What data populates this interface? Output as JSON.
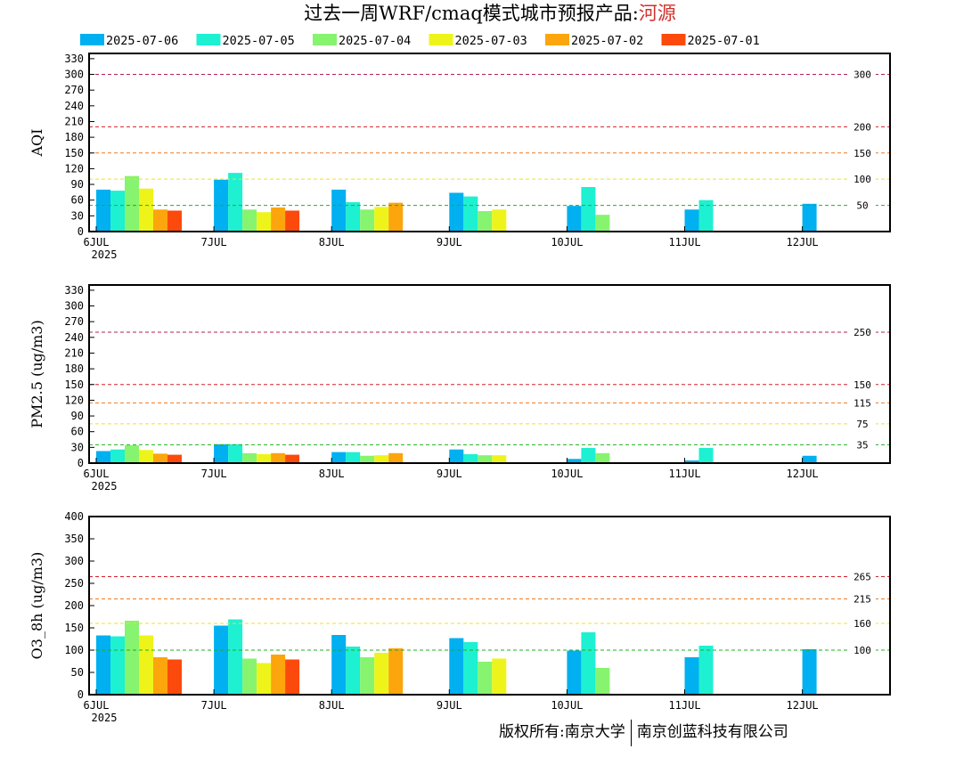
{
  "title": {
    "prefix": "过去一周WRF/cmaq模式城市预报产品:",
    "city": "河源"
  },
  "footer": {
    "left": "版权所有:南京大学",
    "right": "南京创蓝科技有限公司"
  },
  "legend": [
    {
      "name": "2025-07-06",
      "color": "#00b0f0"
    },
    {
      "name": "2025-07-05",
      "color": "#1ef0d2"
    },
    {
      "name": "2025-07-04",
      "color": "#86f46e"
    },
    {
      "name": "2025-07-03",
      "color": "#eef41a"
    },
    {
      "name": "2025-07-02",
      "color": "#fca50c"
    },
    {
      "name": "2025-07-01",
      "color": "#fc4a0c"
    }
  ],
  "x_ticks": [
    "6JUL",
    "7JUL",
    "8JUL",
    "9JUL",
    "10JUL",
    "11JUL",
    "12JUL"
  ],
  "x_year": "2025",
  "chart_data": [
    {
      "type": "bar",
      "ylabel": "AQI",
      "ylim": [
        0,
        340
      ],
      "yticks": [
        0,
        30,
        60,
        90,
        120,
        150,
        180,
        210,
        240,
        270,
        300,
        330
      ],
      "thresholds": [
        {
          "value": 300,
          "label": "300",
          "color": "#b0205a"
        },
        {
          "value": 200,
          "label": "200",
          "color": "#d0202a"
        },
        {
          "value": 150,
          "label": "150",
          "color": "#f07820"
        },
        {
          "value": 100,
          "label": "100",
          "color": "#f0e020"
        },
        {
          "value": 50,
          "label": "50",
          "color": "#20b020"
        }
      ],
      "categories": [
        "6JUL",
        "7JUL",
        "8JUL",
        "9JUL",
        "10JUL",
        "11JUL",
        "12JUL"
      ],
      "series": [
        {
          "name": "2025-07-06",
          "values": [
            80,
            99,
            80,
            74,
            49,
            42,
            53
          ]
        },
        {
          "name": "2025-07-05",
          "values": [
            78,
            112,
            56,
            67,
            85,
            60,
            null
          ]
        },
        {
          "name": "2025-07-04",
          "values": [
            106,
            42,
            42,
            39,
            32,
            null,
            null
          ]
        },
        {
          "name": "2025-07-03",
          "values": [
            82,
            37,
            47,
            42,
            null,
            null,
            null
          ]
        },
        {
          "name": "2025-07-02",
          "values": [
            42,
            46,
            55,
            null,
            null,
            null,
            null
          ]
        },
        {
          "name": "2025-07-01",
          "values": [
            40,
            40,
            null,
            null,
            null,
            null,
            null
          ]
        }
      ]
    },
    {
      "type": "bar",
      "ylabel": "PM2.5 (ug/m3)",
      "ylim": [
        0,
        340
      ],
      "yticks": [
        0,
        30,
        60,
        90,
        120,
        150,
        180,
        210,
        240,
        270,
        300,
        330
      ],
      "thresholds": [
        {
          "value": 250,
          "label": "250",
          "color": "#b0205a"
        },
        {
          "value": 150,
          "label": "150",
          "color": "#d0202a"
        },
        {
          "value": 115,
          "label": "115",
          "color": "#f07820"
        },
        {
          "value": 75,
          "label": "75",
          "color": "#f0e020"
        },
        {
          "value": 35,
          "label": "35",
          "color": "#20b020"
        }
      ],
      "categories": [
        "6JUL",
        "7JUL",
        "8JUL",
        "9JUL",
        "10JUL",
        "11JUL",
        "12JUL"
      ],
      "series": [
        {
          "name": "2025-07-06",
          "values": [
            23,
            36,
            21,
            26,
            8,
            5,
            14
          ]
        },
        {
          "name": "2025-07-05",
          "values": [
            26,
            36,
            21,
            17,
            29,
            29,
            null
          ]
        },
        {
          "name": "2025-07-04",
          "values": [
            34,
            19,
            14,
            15,
            19,
            null,
            null
          ]
        },
        {
          "name": "2025-07-03",
          "values": [
            25,
            17,
            15,
            15,
            null,
            null,
            null
          ]
        },
        {
          "name": "2025-07-02",
          "values": [
            18,
            19,
            19,
            null,
            null,
            null,
            null
          ]
        },
        {
          "name": "2025-07-01",
          "values": [
            16,
            16,
            null,
            null,
            null,
            null,
            null
          ]
        }
      ]
    },
    {
      "type": "bar",
      "ylabel": "O3_8h (ug/m3)",
      "ylim": [
        0,
        400
      ],
      "yticks": [
        0,
        50,
        100,
        150,
        200,
        250,
        300,
        350,
        400
      ],
      "thresholds": [
        {
          "value": 265,
          "label": "265",
          "color": "#d0202a"
        },
        {
          "value": 215,
          "label": "215",
          "color": "#f07820"
        },
        {
          "value": 160,
          "label": "160",
          "color": "#f0e020"
        },
        {
          "value": 100,
          "label": "100",
          "color": "#20b020"
        }
      ],
      "categories": [
        "6JUL",
        "7JUL",
        "8JUL",
        "9JUL",
        "10JUL",
        "11JUL",
        "12JUL"
      ],
      "series": [
        {
          "name": "2025-07-06",
          "values": [
            133,
            155,
            134,
            127,
            99,
            84,
            102
          ]
        },
        {
          "name": "2025-07-05",
          "values": [
            131,
            169,
            108,
            118,
            140,
            110,
            null
          ]
        },
        {
          "name": "2025-07-04",
          "values": [
            166,
            81,
            84,
            74,
            60,
            null,
            null
          ]
        },
        {
          "name": "2025-07-03",
          "values": [
            133,
            71,
            94,
            81,
            null,
            null,
            null
          ]
        },
        {
          "name": "2025-07-02",
          "values": [
            84,
            90,
            104,
            null,
            null,
            null,
            null
          ]
        },
        {
          "name": "2025-07-01",
          "values": [
            79,
            79,
            null,
            null,
            null,
            null,
            null
          ]
        }
      ]
    }
  ]
}
